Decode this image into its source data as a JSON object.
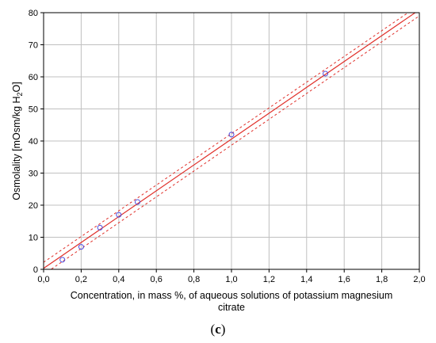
{
  "panel_label": {
    "open": "(",
    "letter": "c",
    "close": ")"
  },
  "chart_data": {
    "type": "scatter",
    "title": "",
    "xlabel_lines": [
      "Concentration, in mass %, of aqueous solutions of potassium magnesium",
      "citrate"
    ],
    "ylabel": {
      "main": "Osmolality [mOsm/kg H",
      "sub": "2",
      "tail": "O]"
    },
    "xlim": [
      0.0,
      2.0
    ],
    "ylim": [
      0,
      80
    ],
    "xticks": [
      0.0,
      0.2,
      0.4,
      0.6,
      0.8,
      1.0,
      1.2,
      1.4,
      1.6,
      1.8,
      2.0
    ],
    "xtick_labels": [
      "0,0",
      "0,2",
      "0,4",
      "0,6",
      "0,8",
      "1,0",
      "1,2",
      "1,4",
      "1,6",
      "1,8",
      "2,0"
    ],
    "yticks": [
      0,
      10,
      20,
      30,
      40,
      50,
      60,
      70,
      80
    ],
    "ytick_labels": [
      "0",
      "10",
      "20",
      "30",
      "40",
      "50",
      "60",
      "70",
      "80"
    ],
    "grid": true,
    "series": [
      {
        "marker": "circle",
        "color": "#4d4de0",
        "x": [
          0.1,
          0.2,
          0.3,
          0.4,
          0.5,
          1.0,
          1.5
        ],
        "y": [
          3,
          7,
          13,
          17,
          21,
          42,
          61
        ]
      }
    ],
    "fit_line": {
      "color": "#e0302a",
      "slope": 40.3,
      "intercept": 0.3
    },
    "confidence_band": {
      "color": "#e0302a",
      "dash": true,
      "upper": [
        [
          0.0,
          2.2
        ],
        [
          2.0,
          82.4
        ]
      ],
      "lower": [
        [
          0.0,
          -1.6
        ],
        [
          2.0,
          79.0
        ]
      ]
    },
    "colors": {
      "grid": "#c0c0c0",
      "axis": "#000000",
      "fit": "#e0302a",
      "points": "#4d4de0"
    }
  }
}
